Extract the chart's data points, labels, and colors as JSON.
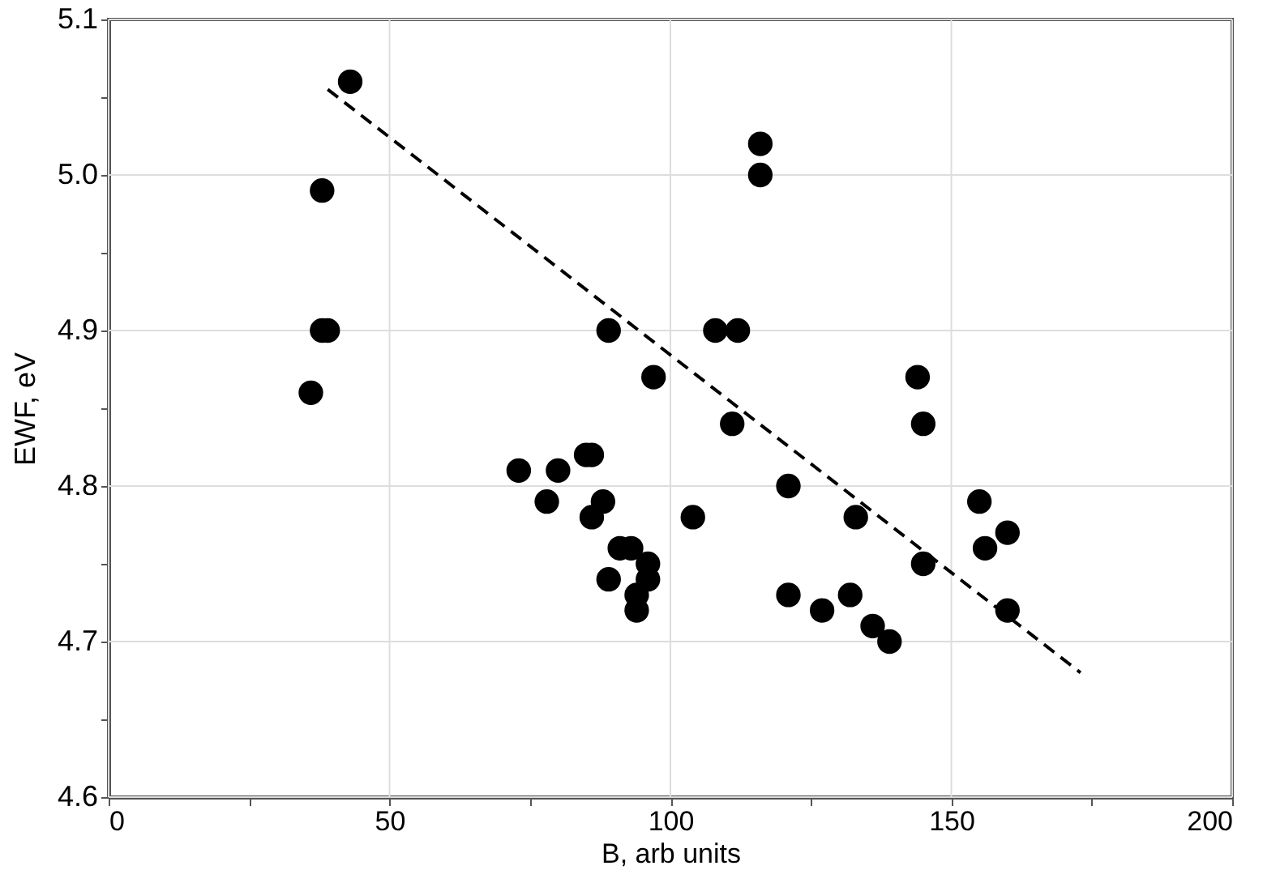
{
  "chart_data": {
    "type": "scatter",
    "xlabel": "B, arb units",
    "ylabel": "EWF, eV",
    "xlim": [
      0,
      200
    ],
    "ylim": [
      4.6,
      5.1
    ],
    "xticks": [
      0,
      {
        "value": 25,
        "label": null
      },
      50,
      {
        "value": 75,
        "label": null
      },
      100,
      {
        "value": 125,
        "label": null
      },
      150,
      {
        "value": 175,
        "label": null
      },
      200
    ],
    "yticks": [
      {
        "value": 4.6,
        "label": "4.6"
      },
      {
        "value": 4.65,
        "label": null
      },
      {
        "value": 4.7,
        "label": "4.7"
      },
      {
        "value": 4.75,
        "label": null
      },
      {
        "value": 4.8,
        "label": "4.8"
      },
      {
        "value": 4.85,
        "label": null
      },
      {
        "value": 4.9,
        "label": "4.9"
      },
      {
        "value": 4.95,
        "label": null
      },
      {
        "value": 5.0,
        "label": "5.0"
      },
      {
        "value": 5.05,
        "label": null
      },
      {
        "value": 5.1,
        "label": "5.1"
      }
    ],
    "grid": true,
    "marker": "circle",
    "series": [
      {
        "color": "#000000",
        "x": [
          36,
          38,
          38,
          39,
          43,
          73,
          78,
          80,
          85,
          86,
          86,
          88,
          89,
          89,
          91,
          93,
          94,
          94,
          96,
          96,
          97,
          104,
          108,
          112,
          111,
          116,
          116,
          121,
          121,
          127,
          132,
          133,
          136,
          139,
          144,
          145,
          145,
          155,
          156,
          160,
          160
        ],
        "values": [
          4.86,
          4.99,
          4.9,
          4.9,
          5.06,
          4.81,
          4.79,
          4.81,
          4.82,
          4.82,
          4.78,
          4.79,
          4.9,
          4.74,
          4.76,
          4.76,
          4.73,
          4.72,
          4.75,
          4.74,
          4.87,
          4.78,
          4.9,
          4.9,
          4.84,
          5.02,
          5.0,
          4.8,
          4.73,
          4.72,
          4.73,
          4.78,
          4.71,
          4.7,
          4.87,
          4.84,
          4.75,
          4.79,
          4.76,
          4.77,
          4.72
        ]
      },
      {
        "type": "line",
        "color": "#000000",
        "line_style": "dashed",
        "marker": "none",
        "x": [
          39,
          173
        ],
        "values": [
          5.055,
          4.68
        ]
      }
    ]
  }
}
